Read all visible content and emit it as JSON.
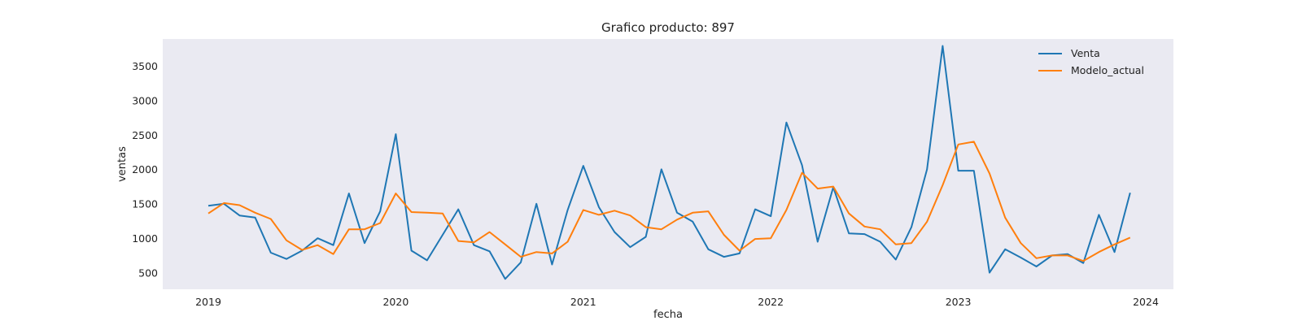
{
  "chart_data": {
    "type": "line",
    "title": "Grafico producto: 897",
    "xlabel": "fecha",
    "ylabel": "ventas",
    "x_start": "2019-01",
    "x": [
      "2019-01",
      "2019-02",
      "2019-03",
      "2019-04",
      "2019-05",
      "2019-06",
      "2019-07",
      "2019-08",
      "2019-09",
      "2019-10",
      "2019-11",
      "2019-12",
      "2020-01",
      "2020-02",
      "2020-03",
      "2020-04",
      "2020-05",
      "2020-06",
      "2020-07",
      "2020-08",
      "2020-09",
      "2020-10",
      "2020-11",
      "2020-12",
      "2021-01",
      "2021-02",
      "2021-03",
      "2021-04",
      "2021-05",
      "2021-06",
      "2021-07",
      "2021-08",
      "2021-09",
      "2021-10",
      "2021-11",
      "2021-12",
      "2022-01",
      "2022-02",
      "2022-03",
      "2022-04",
      "2022-05",
      "2022-06",
      "2022-07",
      "2022-08",
      "2022-09",
      "2022-10",
      "2022-11",
      "2022-12",
      "2023-01",
      "2023-02",
      "2023-03",
      "2023-04",
      "2023-05",
      "2023-06",
      "2023-07",
      "2023-08",
      "2023-09",
      "2023-10",
      "2023-11",
      "2023-12"
    ],
    "xticks": [
      "2019",
      "2020",
      "2021",
      "2022",
      "2023",
      "2024"
    ],
    "yticks": [
      500,
      1000,
      1500,
      2000,
      2500,
      3000,
      3500
    ],
    "ylim": [
      270,
      3900
    ],
    "grid": false,
    "legend_position": "top-right",
    "series": [
      {
        "name": "Venta",
        "color": "#1f77b4",
        "values": [
          1480,
          1510,
          1340,
          1310,
          800,
          710,
          830,
          1010,
          910,
          1660,
          940,
          1400,
          2520,
          830,
          690,
          1060,
          1430,
          910,
          820,
          420,
          660,
          1510,
          630,
          1420,
          2060,
          1460,
          1100,
          880,
          1030,
          2010,
          1380,
          1250,
          850,
          740,
          790,
          1430,
          1330,
          2690,
          2070,
          960,
          1750,
          1080,
          1070,
          960,
          700,
          1170,
          2010,
          3800,
          1990,
          1990,
          510,
          850,
          730,
          600,
          760,
          780,
          650,
          1350,
          810,
          1670
        ]
      },
      {
        "name": "Modelo_actual",
        "color": "#ff7f0e",
        "values": [
          1370,
          1520,
          1490,
          1380,
          1290,
          980,
          840,
          910,
          780,
          1140,
          1140,
          1230,
          1660,
          1390,
          1380,
          1370,
          970,
          950,
          1100,
          920,
          740,
          810,
          790,
          960,
          1420,
          1350,
          1410,
          1340,
          1170,
          1140,
          1280,
          1380,
          1400,
          1060,
          830,
          1000,
          1010,
          1420,
          1960,
          1730,
          1760,
          1370,
          1180,
          1140,
          920,
          940,
          1250,
          1780,
          2370,
          2410,
          1950,
          1310,
          940,
          720,
          760,
          760,
          680,
          810,
          920,
          1020
        ]
      }
    ]
  }
}
